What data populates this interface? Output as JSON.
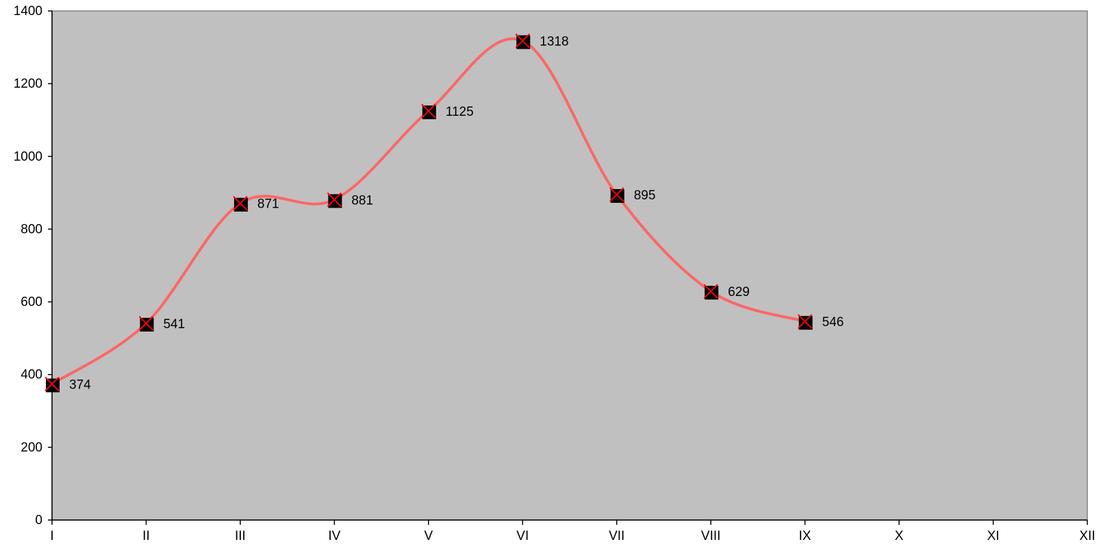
{
  "chart_data": {
    "type": "line",
    "title": "",
    "xlabel": "",
    "ylabel": "",
    "categories": [
      "I",
      "II",
      "III",
      "IV",
      "V",
      "VI",
      "VII",
      "VIII",
      "IX",
      "X",
      "XI",
      "XII"
    ],
    "series": [
      {
        "values": [
          374,
          541,
          871,
          881,
          1125,
          1318,
          895,
          629,
          546,
          null,
          null,
          null
        ],
        "line_color": "#ff6666",
        "marker": "black square with red x",
        "smoothed": true
      }
    ],
    "data_labels": [
      "374",
      "541",
      "871",
      "881",
      "1125",
      "1318",
      "895",
      "629",
      "546"
    ],
    "ylim": [
      0,
      1400
    ],
    "y_ticks": [
      0,
      200,
      400,
      600,
      800,
      1000,
      1200,
      1400
    ],
    "y_tick_labels": [
      "0",
      "200",
      "400",
      "600",
      "800",
      "1000",
      "1200",
      "1400"
    ],
    "grid": false,
    "legend": "none",
    "plot_background": "#c0c0c0"
  }
}
